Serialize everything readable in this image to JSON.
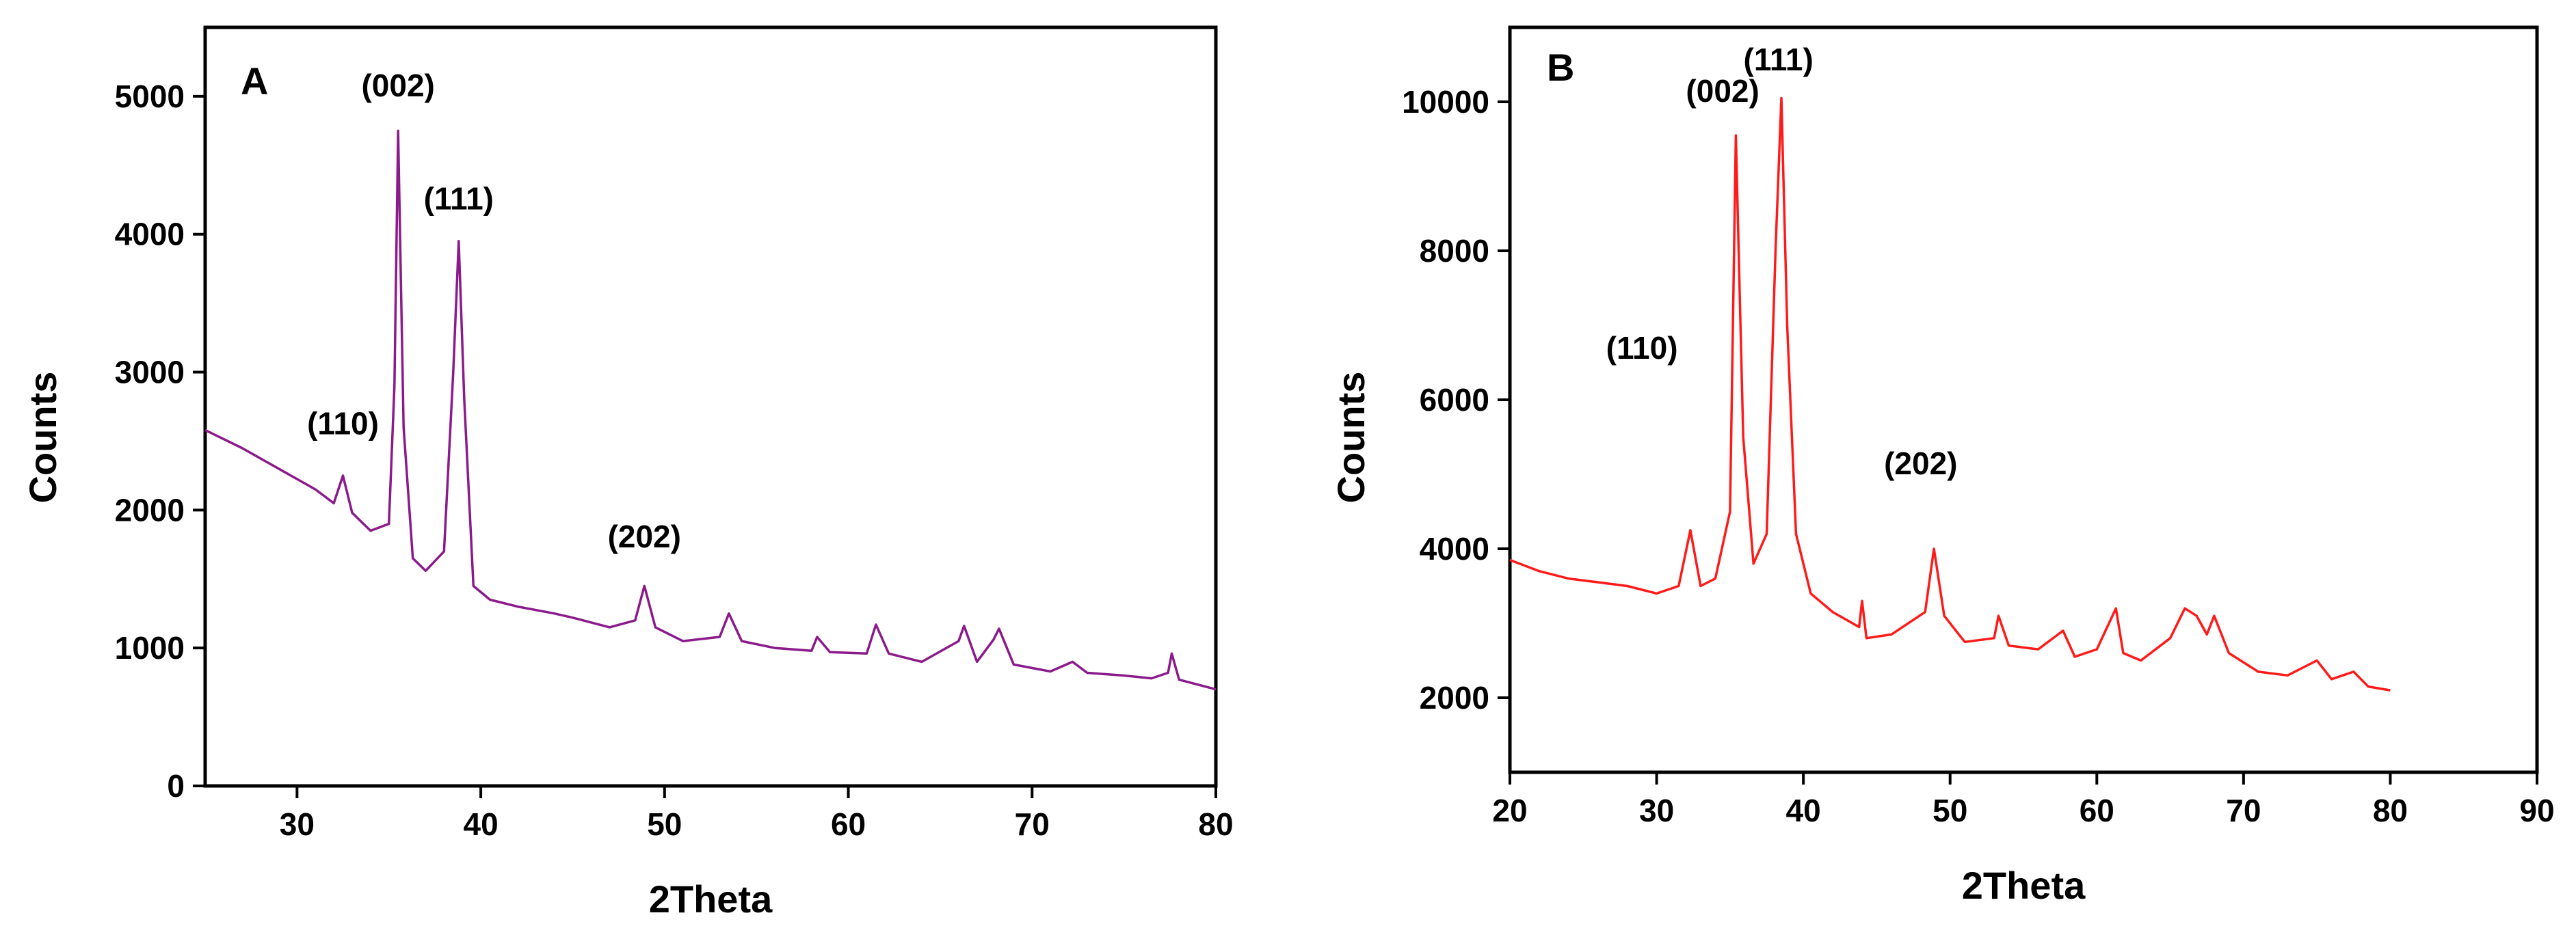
{
  "chart_data": [
    {
      "type": "line",
      "panel_label": "A",
      "xlabel": "2Theta",
      "ylabel": "Counts",
      "xlim": [
        25,
        80
      ],
      "ylim": [
        0,
        5500
      ],
      "xticks": [
        30,
        40,
        50,
        60,
        70,
        80
      ],
      "yticks": [
        0,
        1000,
        2000,
        3000,
        4000,
        5000
      ],
      "color": "#8b1a8b",
      "series": [
        {
          "name": "A",
          "x": [
            25,
            27,
            29,
            31,
            32.0,
            32.5,
            33.0,
            34,
            35.0,
            35.3,
            35.5,
            35.8,
            36.3,
            37,
            38.0,
            38.5,
            38.8,
            39.1,
            39.6,
            40.5,
            42,
            44,
            45,
            47,
            48.4,
            48.9,
            49.5,
            51,
            53.0,
            53.5,
            54.2,
            56,
            58,
            58.3,
            59,
            61,
            61.5,
            62.2,
            64,
            66.0,
            66.3,
            67,
            67.9,
            68.2,
            69,
            71,
            72.2,
            73,
            75,
            76.5,
            77.4,
            77.6,
            78,
            80
          ],
          "y": [
            2580,
            2450,
            2300,
            2150,
            2050,
            2250,
            1980,
            1850,
            1900,
            2900,
            4750,
            2600,
            1650,
            1560,
            1700,
            3000,
            3950,
            2800,
            1450,
            1350,
            1300,
            1250,
            1220,
            1150,
            1200,
            1450,
            1150,
            1050,
            1080,
            1250,
            1050,
            1000,
            980,
            1080,
            970,
            960,
            1170,
            960,
            900,
            1050,
            1160,
            900,
            1060,
            1140,
            880,
            830,
            900,
            820,
            800,
            780,
            820,
            960,
            770,
            700
          ]
        }
      ],
      "annotations": [
        {
          "text": "(110)",
          "x": 32.5,
          "y": 2550
        },
        {
          "text": "(002)",
          "x": 35.5,
          "y": 5000
        },
        {
          "text": "(111)",
          "x": 38.8,
          "y": 4180
        },
        {
          "text": "(202)",
          "x": 48.9,
          "y": 1730
        }
      ]
    },
    {
      "type": "line",
      "panel_label": "B",
      "xlabel": "2Theta",
      "ylabel": "Counts",
      "xlim": [
        20,
        90
      ],
      "ylim": [
        1000,
        11000
      ],
      "xticks": [
        20,
        30,
        40,
        50,
        60,
        70,
        80,
        90
      ],
      "yticks": [
        2000,
        4000,
        6000,
        8000,
        10000
      ],
      "color": "#ff1a1a",
      "series": [
        {
          "name": "B",
          "x": [
            20,
            22,
            24,
            26,
            28,
            30,
            31.5,
            32.3,
            33.0,
            34,
            35.0,
            35.4,
            35.9,
            36.6,
            37.5,
            38.1,
            38.5,
            38.9,
            39.5,
            40.5,
            42,
            43.8,
            44.0,
            44.3,
            46,
            48.3,
            48.9,
            49.6,
            51,
            53.0,
            53.3,
            54,
            56,
            57.7,
            58.5,
            60,
            61.3,
            61.8,
            63,
            65,
            66.0,
            66.8,
            67.5,
            68.0,
            69,
            71,
            73,
            75,
            76,
            77.5,
            78.5,
            80
          ],
          "y": [
            3850,
            3700,
            3600,
            3550,
            3500,
            3400,
            3500,
            4250,
            3500,
            3600,
            4500,
            9550,
            5500,
            3800,
            4200,
            8000,
            10050,
            7000,
            4200,
            3400,
            3150,
            2950,
            3300,
            2800,
            2850,
            3150,
            4000,
            3100,
            2750,
            2800,
            3100,
            2700,
            2650,
            2900,
            2550,
            2650,
            3200,
            2600,
            2500,
            2800,
            3200,
            3100,
            2850,
            3100,
            2600,
            2350,
            2300,
            2500,
            2250,
            2350,
            2150,
            2100
          ]
        }
      ],
      "annotations": [
        {
          "text": "(110)",
          "x": 29.0,
          "y": 6550
        },
        {
          "text": "(002)",
          "x": 34.5,
          "y": 10000
        },
        {
          "text": "(111)",
          "x": 38.3,
          "y": 10420
        },
        {
          "text": "(202)",
          "x": 48.0,
          "y": 5000
        }
      ]
    }
  ]
}
